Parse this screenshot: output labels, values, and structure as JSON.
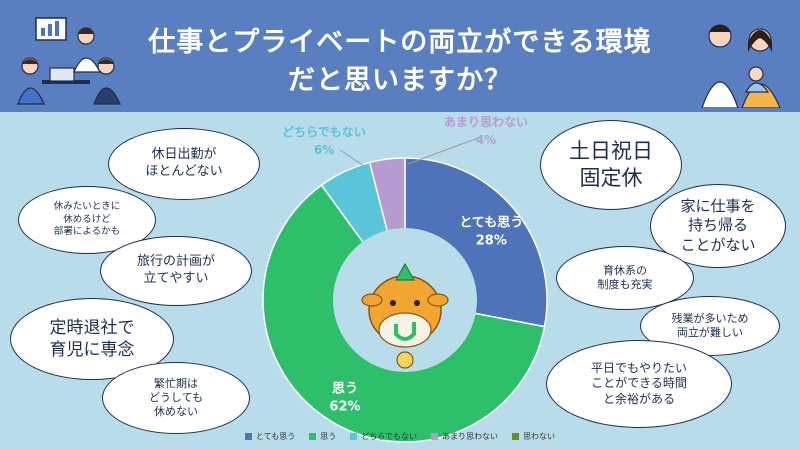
{
  "header": {
    "title_line1": "仕事とプライベートの両立ができる環境",
    "title_line2": "だと思いますか？"
  },
  "chart_data": {
    "type": "pie",
    "donut": true,
    "title": "仕事とプライベートの両立ができる環境だと思いますか？",
    "categories": [
      "とても思う",
      "思う",
      "どちらでもない",
      "あまり思わない",
      "思わない"
    ],
    "values": [
      28,
      62,
      6,
      4,
      0
    ],
    "value_labels": [
      "28%",
      "62%",
      "6%",
      "4%",
      ""
    ],
    "colors": [
      "#4f73b8",
      "#2dbf6a",
      "#5ac4d8",
      "#b79bd0",
      "#6e8b22"
    ],
    "legend_position": "bottom"
  },
  "bubbles_left": [
    "休日出勤が\nほとんどない",
    "休みたいときに\n休めるけど\n部署によるかも",
    "旅行の計画が\n立てやすい",
    "定時退社で\n育児に専念",
    "繁忙期は\nどうしても\n休めない"
  ],
  "bubbles_right": [
    "土日祝日\n固定休",
    "家に仕事を\n持ち帰る\nことがない",
    "育休系の\n制度も充実",
    "残業が多いため\n両立が難しい",
    "平日でもやりたい\nことができる時間\nと余裕がある"
  ]
}
